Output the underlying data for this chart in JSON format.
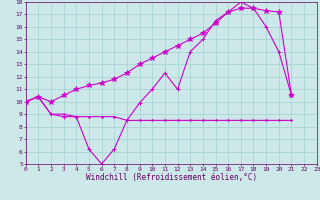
{
  "xlabel": "Windchill (Refroidissement éolien,°C)",
  "bg_color": "#cce8e8",
  "grid_color": "#99cccc",
  "line_color": "#cc00cc",
  "spine_color": "#660066",
  "xmin": 0,
  "xmax": 23,
  "ymin": 5,
  "ymax": 18,
  "line1_x": [
    0,
    1,
    2,
    3,
    4,
    5,
    6,
    7,
    8,
    9,
    10,
    11,
    12,
    13,
    14,
    15,
    16,
    17,
    18,
    19,
    20,
    21
  ],
  "line1_y": [
    10.0,
    10.4,
    9.0,
    8.8,
    8.8,
    6.2,
    5.0,
    6.2,
    8.5,
    9.9,
    11.0,
    12.3,
    11.0,
    14.0,
    15.0,
    16.5,
    17.2,
    18.0,
    17.5,
    16.0,
    14.0,
    10.5
  ],
  "line2_x": [
    0,
    1,
    2,
    3,
    4,
    5,
    6,
    7,
    8,
    9,
    10,
    11,
    12,
    13,
    14,
    15,
    16,
    17,
    18,
    19,
    20,
    21
  ],
  "line2_y": [
    10.0,
    10.4,
    10.0,
    10.5,
    11.0,
    11.3,
    11.5,
    11.8,
    12.3,
    13.0,
    13.5,
    14.0,
    14.5,
    15.0,
    15.5,
    16.3,
    17.2,
    17.5,
    17.5,
    17.3,
    17.2,
    10.5
  ],
  "line3_x": [
    0,
    1,
    2,
    3,
    4,
    5,
    6,
    7,
    8,
    9,
    10,
    11,
    12,
    13,
    14,
    15,
    16,
    17,
    18,
    19,
    20,
    21
  ],
  "line3_y": [
    10.0,
    10.4,
    9.0,
    9.0,
    8.8,
    8.8,
    8.8,
    8.8,
    8.5,
    8.5,
    8.5,
    8.5,
    8.5,
    8.5,
    8.5,
    8.5,
    8.5,
    8.5,
    8.5,
    8.5,
    8.5,
    8.5
  ],
  "xlabel_fontsize": 5.5,
  "tick_fontsize": 4.5,
  "linewidth": 0.8,
  "markersize": 2.5
}
